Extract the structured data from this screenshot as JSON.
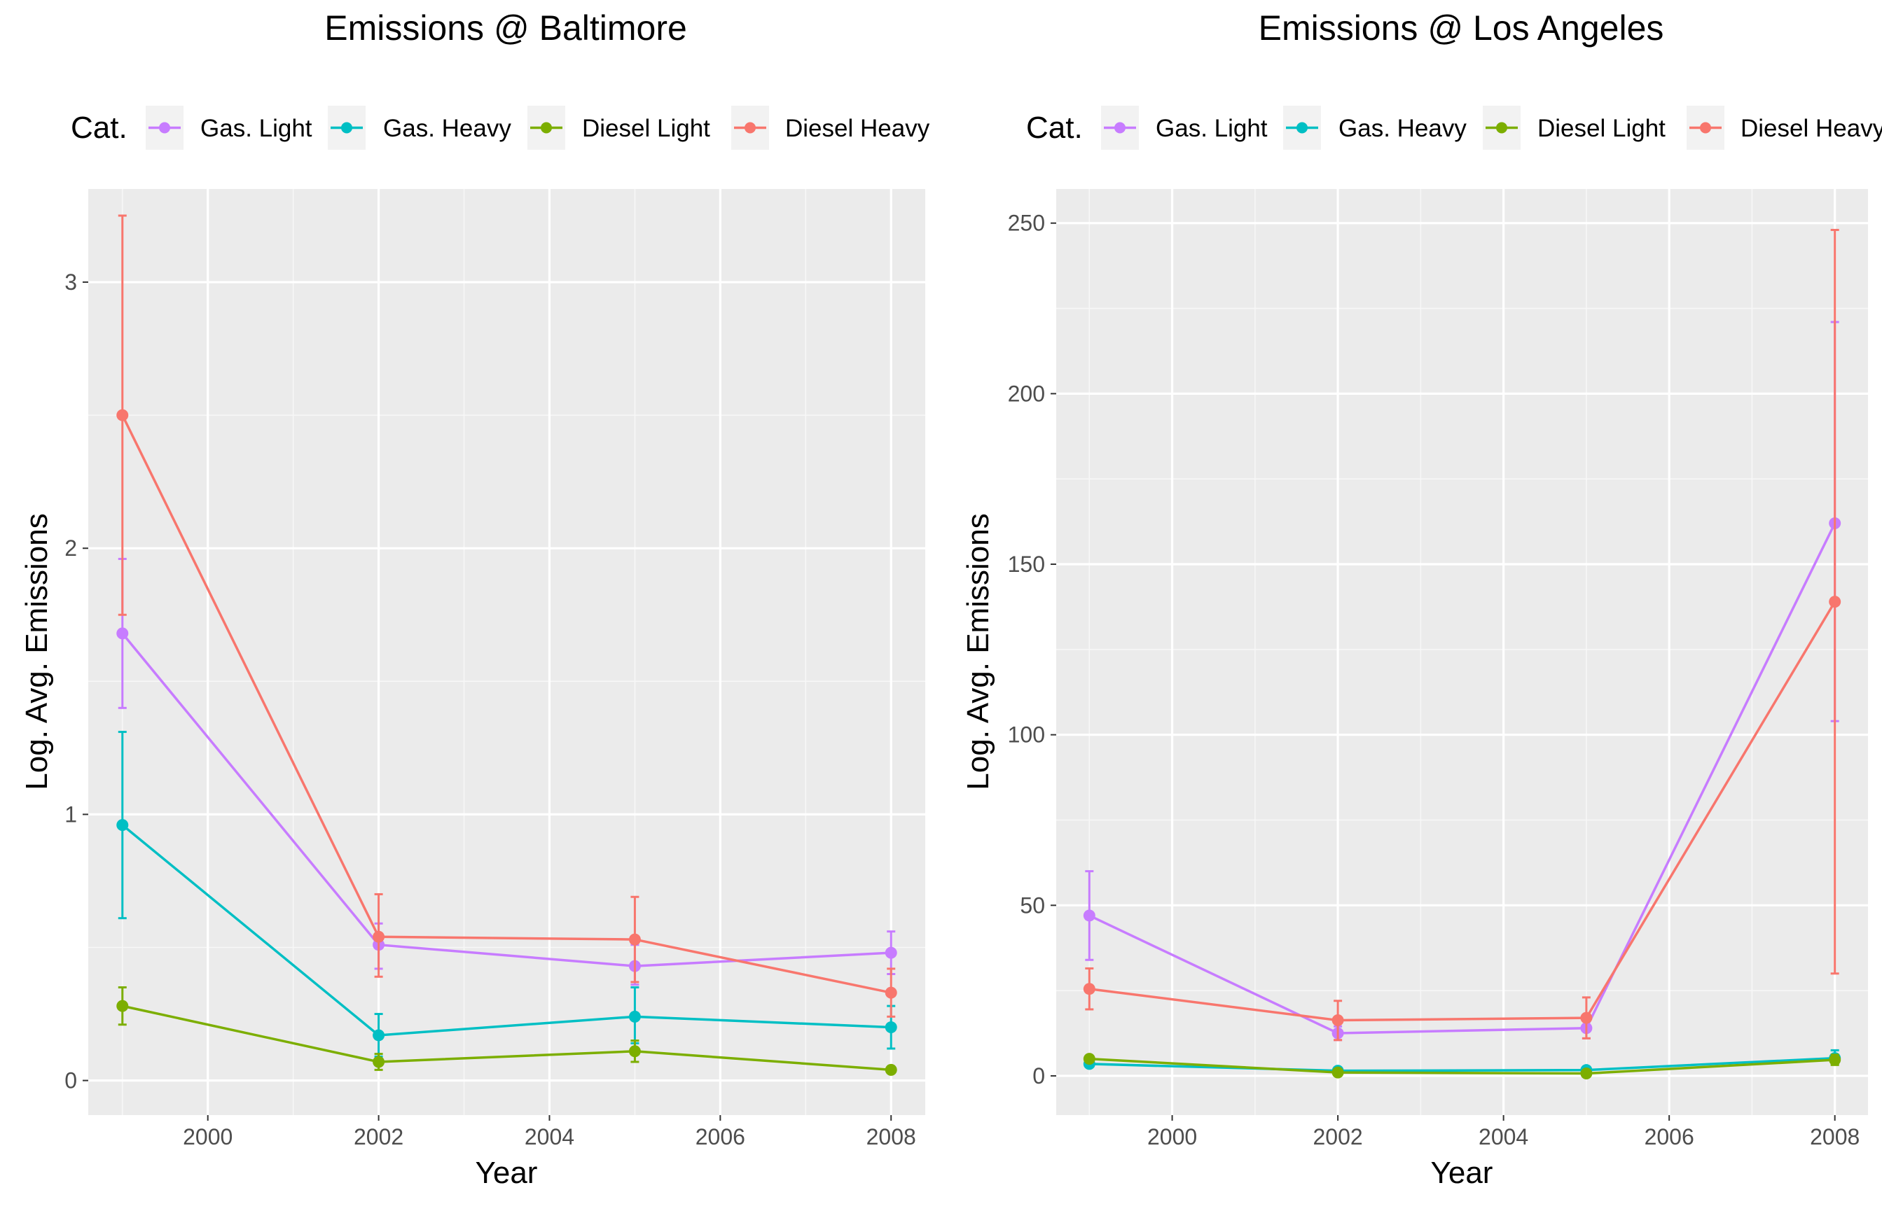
{
  "chart_data": [
    {
      "type": "line",
      "title": "Emissions @ Baltimore",
      "xlabel": "Year",
      "ylabel": "Log. Avg. Emissions",
      "legend_title": "Cat.",
      "legend_position": "top",
      "grid": true,
      "xlim": [
        1998.6,
        2008.4
      ],
      "ylim": [
        -0.13,
        3.35
      ],
      "xticks": [
        2000,
        2002,
        2004,
        2006,
        2008
      ],
      "xtick_labels": [
        "2000",
        "2002",
        "2004",
        "2006",
        "2008"
      ],
      "yticks": [
        0,
        1,
        2,
        3
      ],
      "ytick_labels": [
        "0",
        "1",
        "2",
        "3"
      ],
      "x": [
        1999,
        2002,
        2005,
        2008
      ],
      "series": [
        {
          "name": "Gas. Light",
          "color": "#C77CFF",
          "values": [
            1.68,
            0.51,
            0.43,
            0.48
          ],
          "err_low": [
            1.4,
            0.42,
            0.36,
            0.4
          ],
          "err_high": [
            1.96,
            0.59,
            0.51,
            0.56
          ]
        },
        {
          "name": "Gas. Heavy",
          "color": "#00BFC4",
          "values": [
            0.96,
            0.17,
            0.24,
            0.2
          ],
          "err_low": [
            0.61,
            0.09,
            0.14,
            0.12
          ],
          "err_high": [
            1.31,
            0.25,
            0.35,
            0.28
          ]
        },
        {
          "name": "Diesel Light",
          "color": "#7CAE00",
          "values": [
            0.28,
            0.07,
            0.11,
            0.04
          ],
          "err_low": [
            0.21,
            0.04,
            0.07,
            0.03
          ],
          "err_high": [
            0.35,
            0.1,
            0.15,
            0.05
          ]
        },
        {
          "name": "Diesel Heavy",
          "color": "#F8766D",
          "values": [
            2.5,
            0.54,
            0.53,
            0.33
          ],
          "err_low": [
            1.75,
            0.39,
            0.37,
            0.24
          ],
          "err_high": [
            3.25,
            0.7,
            0.69,
            0.42
          ]
        }
      ]
    },
    {
      "type": "line",
      "title": "Emissions @ Los Angeles",
      "xlabel": "Year",
      "ylabel": "Log. Avg. Emissions",
      "legend_title": "Cat.",
      "legend_position": "top",
      "grid": true,
      "xlim": [
        1998.6,
        2008.4
      ],
      "ylim": [
        -11.5,
        260
      ],
      "xticks": [
        2000,
        2002,
        2004,
        2006,
        2008
      ],
      "xtick_labels": [
        "2000",
        "2002",
        "2004",
        "2006",
        "2008"
      ],
      "yticks": [
        0,
        50,
        100,
        150,
        200,
        250
      ],
      "ytick_labels": [
        "0",
        "50",
        "100",
        "150",
        "200",
        "250"
      ],
      "x": [
        1999,
        2002,
        2005,
        2008
      ],
      "series": [
        {
          "name": "Gas. Light",
          "color": "#C77CFF",
          "values": [
            47,
            12.5,
            14,
            162
          ],
          "err_low": [
            34,
            10.5,
            11,
            104
          ],
          "err_high": [
            60,
            14.5,
            17,
            221
          ]
        },
        {
          "name": "Gas. Heavy",
          "color": "#00BFC4",
          "values": [
            3.5,
            1.5,
            1.7,
            5.2
          ],
          "err_low": [
            2.8,
            1.0,
            1.0,
            3.5
          ],
          "err_high": [
            4.2,
            2.0,
            2.4,
            7.5
          ]
        },
        {
          "name": "Diesel Light",
          "color": "#7CAE00",
          "values": [
            5,
            1,
            0.7,
            4.7
          ],
          "err_low": [
            4.3,
            0.6,
            0.4,
            3.2
          ],
          "err_high": [
            5.7,
            1.4,
            1.0,
            6.2
          ]
        },
        {
          "name": "Diesel Heavy",
          "color": "#F8766D",
          "values": [
            25.5,
            16.3,
            17,
            139
          ],
          "err_low": [
            19.5,
            10.5,
            11,
            30
          ],
          "err_high": [
            31.5,
            22,
            23,
            248
          ]
        }
      ]
    }
  ]
}
